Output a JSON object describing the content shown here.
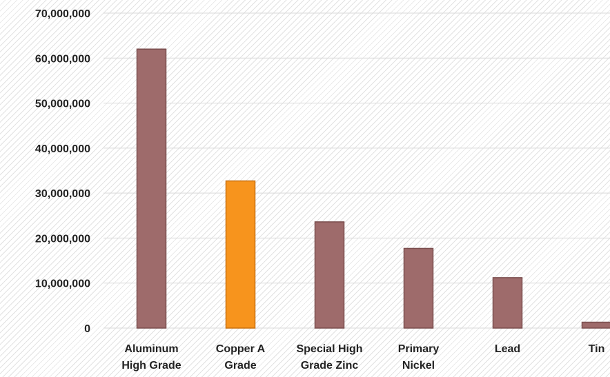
{
  "chart_data": {
    "type": "bar",
    "categories": [
      [
        "Aluminum",
        "High Grade"
      ],
      [
        "Copper A",
        "Grade"
      ],
      [
        "Special High",
        "Grade Zinc"
      ],
      [
        "Primary",
        "Nickel"
      ],
      [
        "Lead"
      ],
      [
        "Tin"
      ]
    ],
    "values": [
      62000000,
      32700000,
      23600000,
      17700000,
      11200000,
      1300000
    ],
    "highlight_index": 1,
    "ylim": [
      0,
      70000000
    ],
    "y_ticks": [
      0,
      10000000,
      20000000,
      30000000,
      40000000,
      50000000,
      60000000,
      70000000
    ],
    "y_tick_labels": [
      "0",
      "10,000,000",
      "20,000,000",
      "30,000,000",
      "40,000,000",
      "50,000,000",
      "60,000,000",
      "70,000,000"
    ],
    "grid": true,
    "legend": "none",
    "title": "",
    "xlabel": "",
    "ylabel": "",
    "colors": {
      "bar": "#9e6b6b",
      "bar_edge": "#7a4e4e",
      "highlight": "#f7941d",
      "highlight_edge": "#c9700f",
      "grid": "#d9d9d9"
    }
  }
}
